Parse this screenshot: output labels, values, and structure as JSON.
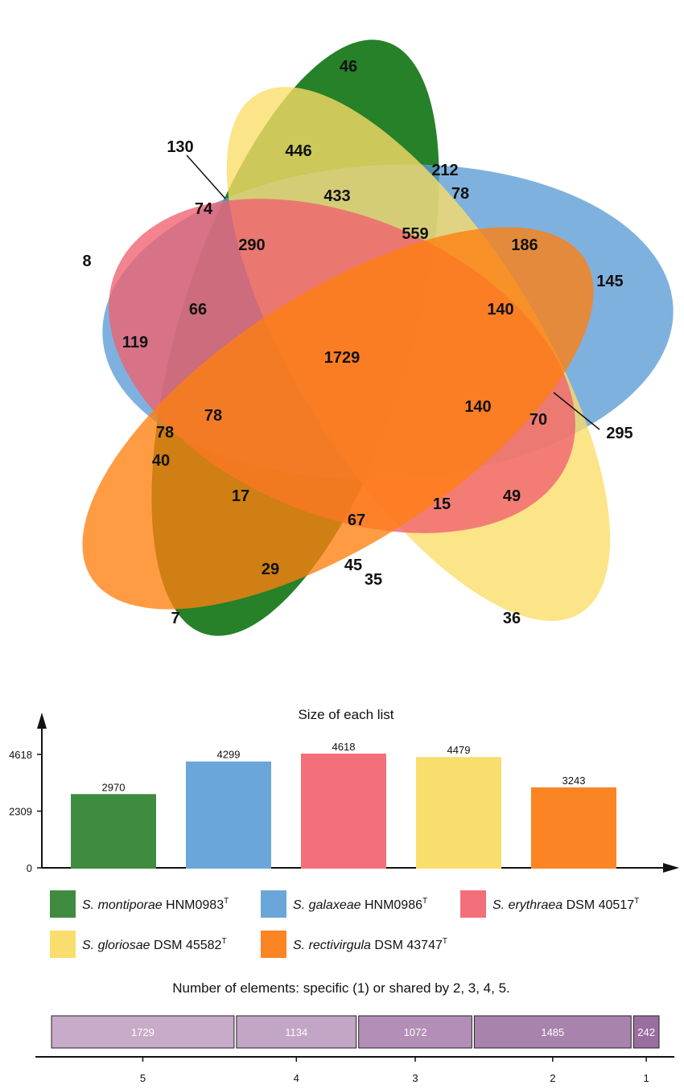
{
  "chart_data": [
    {
      "type": "venn",
      "sets": [
        {
          "name_italic": "S. montiporae",
          "name_rest": " HNM0983",
          "sup": "T",
          "color": "#1a7a1e"
        },
        {
          "name_italic": "S. galaxeae",
          "name_rest": " HNM0986",
          "sup": "T",
          "color": "#5b9bd5"
        },
        {
          "name_italic": "S. erythraea",
          "name_rest": " DSM 40517",
          "sup": "T",
          "color": "#f0606e"
        },
        {
          "name_italic": "S. gloriosae",
          "name_rest": " DSM 45582",
          "sup": "T",
          "color": "#fbdc66"
        },
        {
          "name_italic": "S. rectivirgula",
          "name_rest": " DSM 43747",
          "sup": "T",
          "color": "#ff7f0e"
        }
      ],
      "region_labels": [
        "46",
        "446",
        "212",
        "130",
        "74",
        "433",
        "78",
        "8",
        "290",
        "559",
        "186",
        "145",
        "66",
        "140",
        "119",
        "1729",
        "78",
        "140",
        "70",
        "295",
        "78",
        "40",
        "17",
        "15",
        "49",
        "67",
        "29",
        "45",
        "35",
        "7",
        "36"
      ]
    },
    {
      "type": "bar",
      "title": "Size of each list",
      "categories": [
        "S. montiporae HNM0983T",
        "S. galaxeae HNM0986T",
        "S. erythraea DSM 40517T",
        "S. gloriosae DSM 45582T",
        "S. rectivirgula DSM 43747T"
      ],
      "values": [
        2970,
        4299,
        4618,
        4479,
        3243
      ],
      "value_labels": [
        "2970",
        "4299",
        "4618",
        "4479",
        "3243"
      ],
      "colors": [
        "#3f8b3f",
        "#6aa6da",
        "#f36f7a",
        "#f9dd6d",
        "#fb8425"
      ],
      "y_ticks": [
        "0",
        "2309",
        "4618"
      ],
      "ylim": [
        0,
        4618
      ],
      "legend_placement": "bottom"
    },
    {
      "type": "bar",
      "orientation": "stacked-horizontal",
      "title": "Number of elements: specific (1) or shared by 2, 3, 4, 5.",
      "categories": [
        "5",
        "4",
        "3",
        "2",
        "1"
      ],
      "values": [
        1729,
        1134,
        1072,
        1485,
        242
      ],
      "value_labels": [
        "1729",
        "1134",
        "1072",
        "1485",
        "242"
      ],
      "colors": [
        "#c8abc8",
        "#c3a5c6",
        "#b38fb7",
        "#a883ac",
        "#9b6ea0"
      ]
    }
  ]
}
